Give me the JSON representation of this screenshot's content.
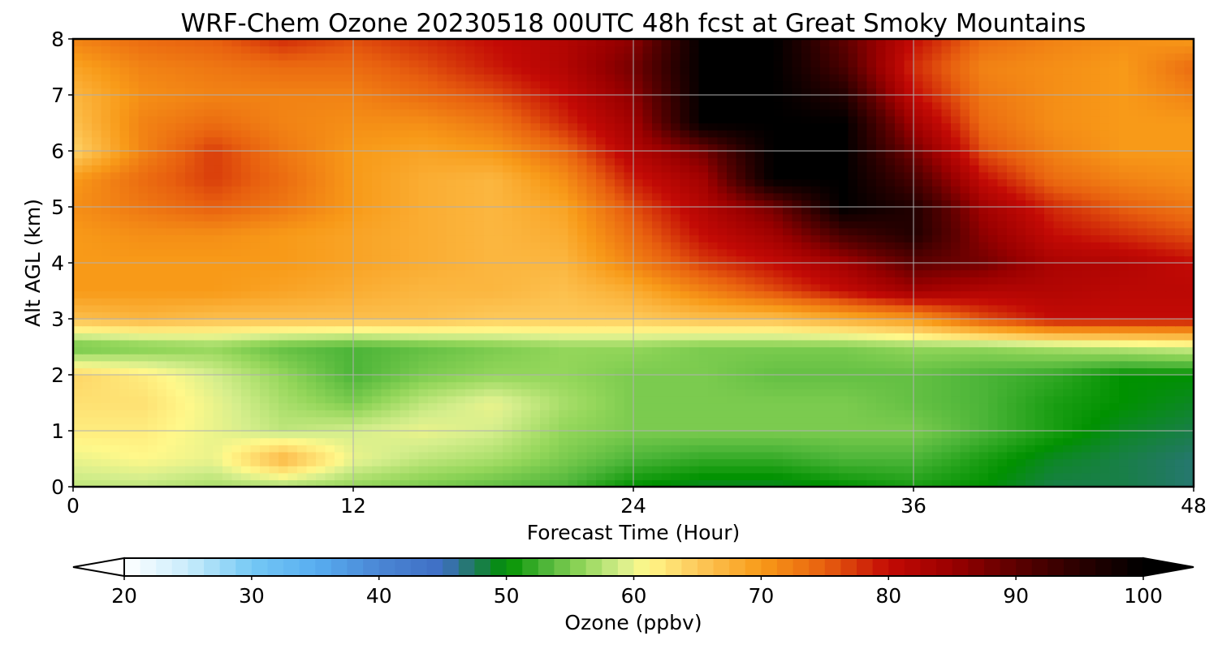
{
  "chart_data": {
    "type": "heatmap",
    "title": "WRF-Chem Ozone  20230518 00UTC 48h fcst at Great Smoky Mountains",
    "xlabel": "Forecast Time (Hour)",
    "ylabel": "Alt AGL (km)",
    "xlim": [
      0,
      48
    ],
    "ylim": [
      0,
      8
    ],
    "xticks": [
      0,
      12,
      24,
      36,
      48
    ],
    "yticks": [
      0,
      1,
      2,
      3,
      4,
      5,
      6,
      7,
      8
    ],
    "grid": true,
    "x_hours": [
      0,
      3,
      6,
      9,
      12,
      15,
      18,
      21,
      24,
      27,
      30,
      33,
      36,
      39,
      42,
      45,
      48
    ],
    "y_km": [
      0,
      0.5,
      1,
      1.5,
      2,
      2.5,
      3,
      3.5,
      4,
      4.5,
      5,
      5.5,
      6,
      6.5,
      7,
      7.5,
      8
    ],
    "z_ppbv": [
      [
        58,
        58,
        57,
        57,
        56,
        55,
        54,
        53,
        50,
        49,
        49,
        50,
        51,
        50,
        48,
        48,
        47
      ],
      [
        60,
        61,
        60,
        67,
        60,
        58,
        57,
        55,
        53,
        52,
        52,
        53,
        53,
        51,
        49,
        48,
        47
      ],
      [
        62,
        62,
        60,
        58,
        59,
        60,
        59,
        56,
        55,
        55,
        55,
        55,
        55,
        53,
        51,
        49,
        48
      ],
      [
        63,
        63,
        60,
        57,
        55,
        58,
        60,
        57,
        55,
        55,
        55,
        55,
        54,
        53,
        51,
        50,
        49
      ],
      [
        64,
        62,
        59,
        56,
        53,
        55,
        56,
        56,
        55,
        55,
        54,
        54,
        54,
        53,
        52,
        50,
        50
      ],
      [
        54,
        55,
        56,
        54,
        53,
        54,
        55,
        56,
        56,
        55,
        55,
        55,
        56,
        56,
        57,
        58,
        59
      ],
      [
        66,
        67,
        66,
        66,
        66,
        66,
        65,
        65,
        65,
        66,
        66,
        68,
        70,
        76,
        80,
        80,
        80
      ],
      [
        70,
        70,
        70,
        69,
        68,
        67,
        67,
        66,
        68,
        72,
        76,
        80,
        84,
        82,
        82,
        81,
        81
      ],
      [
        70,
        70,
        70,
        70,
        69,
        68,
        67,
        67,
        72,
        77,
        80,
        84,
        90,
        88,
        83,
        82,
        80
      ],
      [
        70,
        71,
        71,
        70,
        69,
        68,
        67,
        68,
        74,
        80,
        84,
        92,
        96,
        86,
        80,
        78,
        76
      ],
      [
        71,
        73,
        75,
        73,
        70,
        68,
        67,
        69,
        76,
        82,
        88,
        100,
        96,
        84,
        78,
        75,
        73
      ],
      [
        70,
        74,
        77,
        74,
        70,
        68,
        67,
        71,
        79,
        84,
        100,
        100,
        92,
        80,
        74,
        72,
        71
      ],
      [
        64,
        72,
        77,
        73,
        70,
        69,
        70,
        74,
        82,
        88,
        100,
        100,
        88,
        76,
        72,
        70,
        70
      ],
      [
        66,
        72,
        74,
        72,
        71,
        71,
        73,
        78,
        84,
        100,
        100,
        100,
        84,
        74,
        71,
        70,
        70
      ],
      [
        67,
        71,
        72,
        72,
        72,
        74,
        76,
        80,
        86,
        100,
        100,
        96,
        80,
        73,
        71,
        70,
        72
      ],
      [
        69,
        72,
        73,
        74,
        74,
        76,
        79,
        82,
        88,
        100,
        100,
        92,
        78,
        72,
        71,
        70,
        74
      ],
      [
        72,
        74,
        75,
        78,
        76,
        78,
        80,
        82,
        86,
        100,
        100,
        90,
        80,
        74,
        72,
        71,
        70
      ]
    ],
    "colorbar": {
      "label": "Ozone  (ppbv)",
      "min": 20,
      "max": 100,
      "ticks": [
        20,
        30,
        40,
        50,
        60,
        70,
        80,
        90,
        100
      ],
      "extend": "both",
      "stops": [
        {
          "v": 20,
          "color": "#ffffff"
        },
        {
          "v": 25,
          "color": "#c9ecfb"
        },
        {
          "v": 30,
          "color": "#74c8f4"
        },
        {
          "v": 35,
          "color": "#58aef0"
        },
        {
          "v": 40,
          "color": "#4a86d4"
        },
        {
          "v": 45,
          "color": "#3f6ec4"
        },
        {
          "v": 47.5,
          "color": "#1f7a5a"
        },
        {
          "v": 50,
          "color": "#009100"
        },
        {
          "v": 53,
          "color": "#4cb538"
        },
        {
          "v": 56,
          "color": "#93d65a"
        },
        {
          "v": 59,
          "color": "#d5ee8c"
        },
        {
          "v": 61,
          "color": "#fff88a"
        },
        {
          "v": 65,
          "color": "#fdc95a"
        },
        {
          "v": 70,
          "color": "#f89a18"
        },
        {
          "v": 75,
          "color": "#e8600f"
        },
        {
          "v": 80,
          "color": "#c30a05"
        },
        {
          "v": 85,
          "color": "#9a0000"
        },
        {
          "v": 90,
          "color": "#5c0000"
        },
        {
          "v": 95,
          "color": "#2a0000"
        },
        {
          "v": 100,
          "color": "#000000"
        }
      ]
    }
  }
}
